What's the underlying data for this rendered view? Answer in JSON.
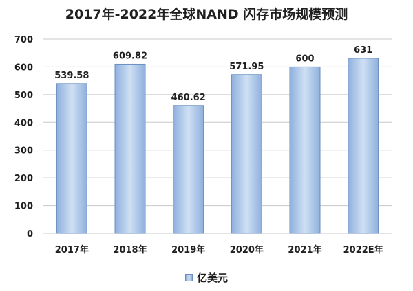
{
  "colors": {
    "bar_fill_light": "#cfe0f3",
    "bar_fill_dark": "#8fb0dd",
    "bar_stroke": "#6b8fc1",
    "gridline": "#c8c8c8",
    "axis_text": "#1f1f1f"
  },
  "chart_data": {
    "type": "bar",
    "title": "2017年-2022年全球NAND 闪存市场规模预测",
    "xlabel": "",
    "ylabel": "",
    "categories": [
      "2017年",
      "2018年",
      "2019年",
      "2020年",
      "2021年",
      "2022E年"
    ],
    "series": [
      {
        "name": "亿美元",
        "values": [
          539.58,
          609.82,
          460.62,
          571.95,
          600,
          631
        ],
        "labels": [
          "539.58",
          "609.82",
          "460.62",
          "571.95",
          "600",
          "631"
        ]
      }
    ],
    "ylim": [
      0,
      700
    ],
    "yticks": [
      0,
      100,
      200,
      300,
      400,
      500,
      600,
      700
    ],
    "grid": true,
    "legend": "bottom"
  }
}
